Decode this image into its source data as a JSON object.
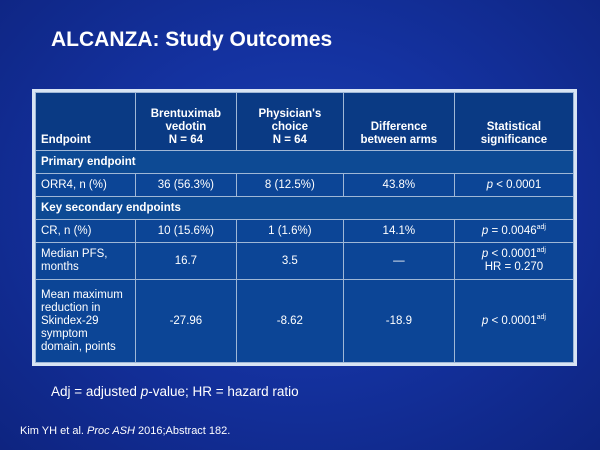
{
  "slide": {
    "title": "ALCANZA: Study Outcomes"
  },
  "table": {
    "headers": {
      "endpoint": "Endpoint",
      "bv_line1": "Brentuximab",
      "bv_line2": "vedotin",
      "bv_line3": "N = 64",
      "pc_line1": "Physician's",
      "pc_line2": "choice",
      "pc_line3": "N = 64",
      "diff_line1": "Difference",
      "diff_line2": "between arms",
      "stat_line1": "Statistical",
      "stat_line2": "significance"
    },
    "sections": {
      "primary": "Primary endpoint",
      "secondary": "Key secondary endpoints"
    },
    "rows": {
      "orr4": {
        "label": "ORR4, n (%)",
        "bv": "36 (56.3%)",
        "pc": "8 (12.5%)",
        "diff": "43.8%",
        "p_italic": "p",
        "p_rest": " < 0.0001"
      },
      "cr": {
        "label": "CR, n (%)",
        "bv": "10 (15.6%)",
        "pc": "1 (1.6%)",
        "diff": "14.1%",
        "p_italic": "p",
        "p_rest": " = 0.0046",
        "p_sup": "adj"
      },
      "pfs": {
        "label_line1": "Median PFS,",
        "label_line2": "months",
        "bv": "16.7",
        "pc": "3.5",
        "diff": "—",
        "p_italic": "p",
        "p_rest": " < 0.0001",
        "p_sup": "adj",
        "hr": "HR = 0.270"
      },
      "skindex": {
        "label_line1": "Mean maximum",
        "label_line2": "reduction in",
        "label_line3": "Skindex-29",
        "label_line4": "symptom",
        "label_line5": "domain, points",
        "bv": "-27.96",
        "pc": "-8.62",
        "diff": "-18.9",
        "p_italic": "p",
        "p_rest": " < 0.0001",
        "p_sup": "adj"
      }
    }
  },
  "footnote": {
    "part1": "Adj = adjusted ",
    "italic": "p",
    "part2": "-value; HR = hazard ratio"
  },
  "citation": {
    "part1": "Kim YH et al. ",
    "italic": "Proc ASH",
    "part2": " 2016;Abstract 182."
  }
}
